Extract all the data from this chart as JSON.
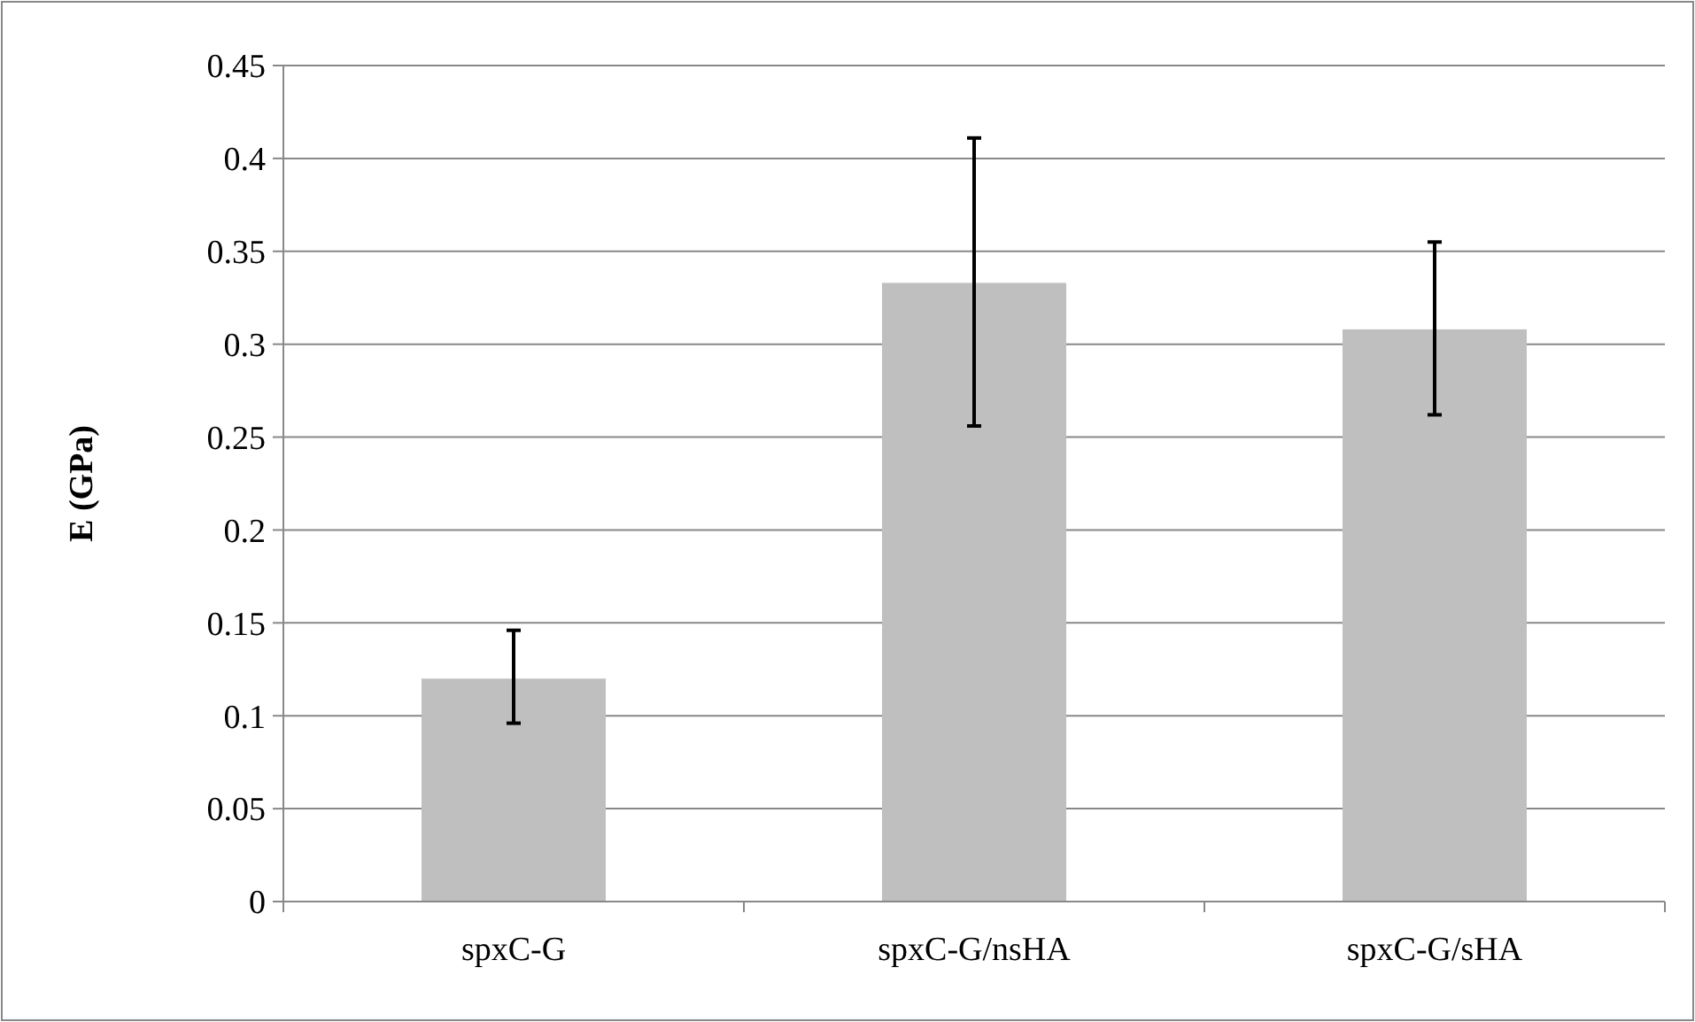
{
  "chart_data": {
    "type": "bar",
    "ylabel": "E (GPa)",
    "categories": [
      "spxC-G",
      "spxC-G/nsHA",
      "spxC-G/sHA"
    ],
    "values": [
      0.12,
      0.333,
      0.308
    ],
    "errors": [
      [
        0.096,
        0.146
      ],
      [
        0.256,
        0.411
      ],
      [
        0.262,
        0.355
      ]
    ],
    "color": "#bfbfbf",
    "ylim": [
      0,
      0.45
    ],
    "yticks": [
      0,
      0.05,
      0.1,
      0.15,
      0.2,
      0.25,
      0.3,
      0.35,
      0.4,
      0.45
    ],
    "grid": "y"
  }
}
